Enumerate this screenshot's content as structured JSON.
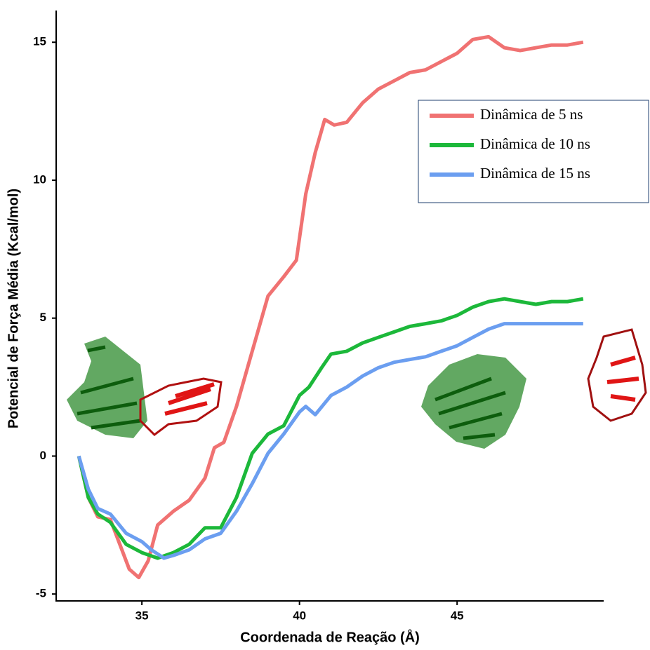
{
  "chart_data": {
    "type": "line",
    "x_label": "Coordenada de Reação (Å)",
    "y_label": "Potencial de Força Média (Kcal/mol)",
    "xlim": [
      32.28,
      49.65
    ],
    "ylim": [
      -5.25,
      16.15
    ],
    "xticks": [
      35,
      40,
      45
    ],
    "yticks": [
      -5,
      0,
      5,
      10,
      15
    ],
    "grid": false,
    "legend": "upper right",
    "series": [
      {
        "name": "Dinâmica de 5 ns",
        "color": "#f07272",
        "x": [
          33.0,
          33.3,
          33.6,
          34.0,
          34.3,
          34.6,
          34.9,
          35.2,
          35.5,
          36.0,
          36.5,
          37.0,
          37.3,
          37.6,
          38.0,
          38.5,
          39.0,
          39.5,
          39.9,
          40.2,
          40.5,
          40.8,
          41.1,
          41.5,
          42.0,
          42.5,
          43.0,
          43.5,
          44.0,
          44.5,
          45.0,
          45.5,
          46.0,
          46.5,
          47.0,
          47.5,
          48.0,
          48.5,
          49.0
        ],
        "values": [
          0,
          -1.5,
          -2.2,
          -2.3,
          -3.2,
          -4.1,
          -4.4,
          -3.8,
          -2.5,
          -2.0,
          -1.6,
          -0.8,
          0.3,
          0.5,
          1.8,
          3.8,
          5.8,
          6.5,
          7.1,
          9.5,
          11.0,
          12.2,
          12.0,
          12.1,
          12.8,
          13.3,
          13.6,
          13.9,
          14.0,
          14.3,
          14.6,
          15.1,
          15.2,
          14.8,
          14.7,
          14.8,
          14.9,
          14.9,
          15.0
        ]
      },
      {
        "name": "Dinâmica de 10 ns",
        "color": "#1cb83a",
        "x": [
          33.0,
          33.3,
          33.6,
          34.0,
          34.5,
          35.0,
          35.5,
          36.0,
          36.5,
          37.0,
          37.5,
          38.0,
          38.5,
          39.0,
          39.5,
          40.0,
          40.3,
          40.7,
          41.0,
          41.5,
          42.0,
          42.5,
          43.0,
          43.5,
          44.0,
          44.5,
          45.0,
          45.5,
          46.0,
          46.5,
          47.0,
          47.5,
          48.0,
          48.5,
          49.0
        ],
        "values": [
          0,
          -1.5,
          -2.1,
          -2.4,
          -3.2,
          -3.5,
          -3.7,
          -3.5,
          -3.2,
          -2.6,
          -2.6,
          -1.5,
          0.1,
          0.8,
          1.1,
          2.2,
          2.5,
          3.2,
          3.7,
          3.8,
          4.1,
          4.3,
          4.5,
          4.7,
          4.8,
          4.9,
          5.1,
          5.4,
          5.6,
          5.7,
          5.6,
          5.5,
          5.6,
          5.6,
          5.7
        ]
      },
      {
        "name": "Dinâmica de 15 ns",
        "color": "#6b9ef0",
        "x": [
          33.0,
          33.3,
          33.6,
          34.0,
          34.5,
          35.0,
          35.3,
          35.7,
          36.0,
          36.5,
          37.0,
          37.5,
          38.0,
          38.5,
          39.0,
          39.5,
          40.0,
          40.2,
          40.5,
          41.0,
          41.5,
          42.0,
          42.5,
          43.0,
          43.5,
          44.0,
          44.5,
          45.0,
          45.5,
          46.0,
          46.5,
          47.0,
          47.5,
          48.0,
          49.0
        ],
        "values": [
          0,
          -1.2,
          -1.9,
          -2.1,
          -2.8,
          -3.1,
          -3.4,
          -3.7,
          -3.6,
          -3.4,
          -3.0,
          -2.8,
          -2.0,
          -1.0,
          0.1,
          0.8,
          1.6,
          1.8,
          1.5,
          2.2,
          2.5,
          2.9,
          3.2,
          3.4,
          3.5,
          3.6,
          3.8,
          4.0,
          4.3,
          4.6,
          4.8,
          4.8,
          4.8,
          4.8,
          4.8
        ]
      }
    ]
  }
}
